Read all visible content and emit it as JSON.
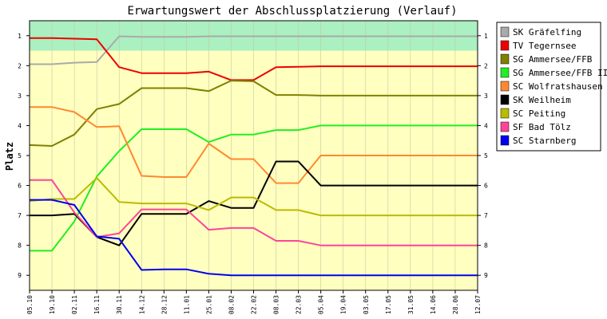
{
  "chart_data": {
    "type": "line",
    "title": "Erwartungswert der Abschlussplatzierung (Verlauf)",
    "xlabel": "",
    "ylabel": "Platz",
    "ylim": [
      9.5,
      0.5
    ],
    "y_ticks": [
      "1",
      "2",
      "3",
      "4",
      "5",
      "6",
      "7",
      "8",
      "9"
    ],
    "categories": [
      "05.10",
      "19.10",
      "02.11",
      "16.11",
      "30.11",
      "14.12",
      "28.12",
      "11.01",
      "25.01",
      "08.02",
      "22.02",
      "08.03",
      "22.03",
      "05.04",
      "19.04",
      "03.05",
      "17.05",
      "31.05",
      "14.06",
      "28.06",
      "12.07"
    ],
    "bands": [
      {
        "from": 0.5,
        "to": 1.5,
        "color": "#aaf0c0"
      },
      {
        "from": 1.5,
        "to": 9.5,
        "color": "#ffffc0"
      }
    ],
    "legend_position": "right",
    "series": [
      {
        "name": "SK Gräfelfing",
        "color": "#aaaaaa",
        "values": [
          1.95,
          1.95,
          1.9,
          1.88,
          1.02,
          1.04,
          1.04,
          1.04,
          1.02,
          1.02,
          1.02,
          1.02,
          1.02,
          1.02,
          1.02,
          1.02,
          1.02,
          1.02,
          1.02,
          1.02,
          1.02
        ]
      },
      {
        "name": "TV Tegernsee",
        "color": "#ee0000",
        "values": [
          1.08,
          1.08,
          1.1,
          1.12,
          2.05,
          2.25,
          2.25,
          2.25,
          2.2,
          2.48,
          2.48,
          2.05,
          2.04,
          2.02,
          2.02,
          2.02,
          2.02,
          2.02,
          2.02,
          2.02,
          2.02
        ]
      },
      {
        "name": "SG Ammersee/FFB",
        "color": "#808000",
        "values": [
          4.65,
          4.68,
          4.3,
          3.45,
          3.28,
          2.75,
          2.75,
          2.75,
          2.85,
          2.5,
          2.52,
          2.98,
          2.98,
          3.0,
          3.0,
          3.0,
          3.0,
          3.0,
          3.0,
          3.0,
          3.0
        ]
      },
      {
        "name": "SG Ammersee/FFB II",
        "color": "#22ee22",
        "values": [
          8.18,
          8.18,
          7.2,
          5.7,
          4.85,
          4.12,
          4.12,
          4.12,
          4.55,
          4.3,
          4.3,
          4.15,
          4.15,
          4.0,
          4.0,
          4.0,
          4.0,
          4.0,
          4.0,
          4.0,
          4.0
        ]
      },
      {
        "name": "SC Wolfratshausen",
        "color": "#ff8833",
        "values": [
          3.38,
          3.38,
          3.55,
          4.05,
          4.02,
          5.68,
          5.72,
          5.72,
          4.6,
          5.12,
          5.12,
          5.92,
          5.92,
          5.0,
          5.0,
          5.0,
          5.0,
          5.0,
          5.0,
          5.0,
          5.0
        ]
      },
      {
        "name": "SK Weilheim",
        "color": "#000000",
        "values": [
          7.0,
          7.0,
          6.95,
          7.72,
          8.0,
          6.95,
          6.95,
          6.95,
          6.52,
          6.75,
          6.75,
          5.2,
          5.2,
          6.0,
          6.0,
          6.0,
          6.0,
          6.0,
          6.0,
          6.0,
          6.0
        ]
      },
      {
        "name": "SC Peiting",
        "color": "#bbbb00",
        "values": [
          6.52,
          6.45,
          6.45,
          5.75,
          6.55,
          6.6,
          6.6,
          6.6,
          6.82,
          6.4,
          6.4,
          6.82,
          6.82,
          7.0,
          7.0,
          7.0,
          7.0,
          7.0,
          7.0,
          7.0,
          7.0
        ]
      },
      {
        "name": "SF Bad Tölz",
        "color": "#ff4499",
        "values": [
          5.82,
          5.82,
          6.9,
          7.72,
          7.6,
          6.8,
          6.8,
          6.8,
          7.48,
          7.42,
          7.42,
          7.85,
          7.85,
          8.0,
          8.0,
          8.0,
          8.0,
          8.0,
          8.0,
          8.0,
          8.0
        ]
      },
      {
        "name": "SC Starnberg",
        "color": "#0000ee",
        "values": [
          6.48,
          6.48,
          6.65,
          7.7,
          7.78,
          8.82,
          8.8,
          8.8,
          8.95,
          9.0,
          9.0,
          9.0,
          9.0,
          9.0,
          9.0,
          9.0,
          9.0,
          9.0,
          9.0,
          9.0,
          9.0
        ]
      }
    ]
  }
}
